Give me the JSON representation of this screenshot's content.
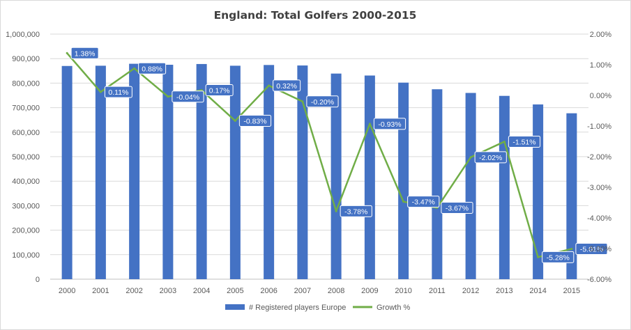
{
  "chart_data": {
    "type": "bar",
    "title": "England: Total Golfers 2000-2015",
    "categories": [
      "2000",
      "2001",
      "2002",
      "2003",
      "2004",
      "2005",
      "2006",
      "2007",
      "2008",
      "2009",
      "2010",
      "2011",
      "2012",
      "2013",
      "2014",
      "2015"
    ],
    "series": [
      {
        "name": "# Registered players Europe",
        "type": "bar",
        "axis": "left",
        "color": "#4472c4",
        "values": [
          870000,
          871000,
          879000,
          875000,
          878000,
          871000,
          874000,
          872000,
          839000,
          831000,
          802000,
          775000,
          760000,
          748000,
          713000,
          677000
        ]
      },
      {
        "name": "Growth %",
        "type": "line",
        "axis": "right",
        "color": "#70ad47",
        "values": [
          1.38,
          0.11,
          0.88,
          -0.04,
          0.17,
          -0.83,
          0.32,
          -0.2,
          -3.78,
          -0.93,
          -3.47,
          -3.67,
          -2.02,
          -1.51,
          -5.28,
          -5.01
        ],
        "labels": [
          "1.38%",
          "0.11%",
          "0.88%",
          "-0.04%",
          "0.17%",
          "-0.83%",
          "0.32%",
          "-0.20%",
          "-3.78%",
          "-0.93%",
          "-3.47%",
          "-3.67%",
          "-2.02%",
          "-1.51%",
          "-5.28%",
          "-5.01%"
        ]
      }
    ],
    "y_left": {
      "min": 0,
      "max": 1000000,
      "ticks": [
        "0",
        "100,000",
        "200,000",
        "300,000",
        "400,000",
        "500,000",
        "600,000",
        "700,000",
        "800,000",
        "900,000",
        "1,000,000"
      ]
    },
    "y_right": {
      "min": -6,
      "max": 2,
      "ticks": [
        "-6.00%",
        "-5.00%",
        "-4.00%",
        "-3.00%",
        "-2.00%",
        "-1.00%",
        "0.00%",
        "1.00%",
        "2.00%"
      ]
    },
    "grid": true,
    "legend_position": "bottom",
    "label_bg_color": "#4472c4"
  }
}
